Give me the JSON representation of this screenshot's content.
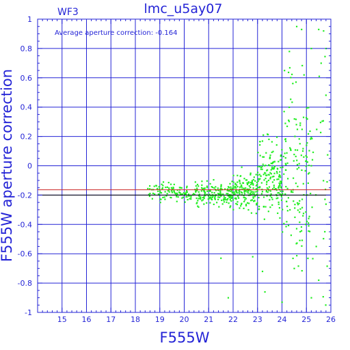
{
  "chart_data": {
    "type": "scatter",
    "title": "lmc_u5ay07",
    "subtitle": "WF3",
    "annotation": "Average aperture correction:  -0.164",
    "xlabel": "F555W",
    "ylabel": "F555W aperture correction",
    "xlim": [
      14,
      26
    ],
    "ylim": [
      -1,
      1
    ],
    "x_ticks": [
      "15",
      "16",
      "17",
      "18",
      "19",
      "20",
      "21",
      "22",
      "23",
      "24",
      "25",
      "26"
    ],
    "y_ticks": [
      "1",
      "0.8",
      "0.6",
      "0.4",
      "0.2",
      "0",
      "-0.2",
      "-0.4",
      "-0.6",
      "-0.8",
      "-1"
    ],
    "grid": true,
    "colors": {
      "axes": "#2323d6",
      "points": "#22ee22",
      "average_line": "#cc2222",
      "reference_line": "#000000"
    },
    "reference_lines": [
      {
        "y": -0.164,
        "color": "#cc2222"
      },
      {
        "y": -0.2,
        "color": "#000000"
      }
    ],
    "point_cloud": {
      "description_free": true,
      "bands": [
        {
          "x": [
            18.5,
            20.5
          ],
          "y_center": -0.18,
          "y_spread": 0.06,
          "count": 110
        },
        {
          "x": [
            20.5,
            22.0
          ],
          "y_center": -0.19,
          "y_spread": 0.08,
          "count": 160
        },
        {
          "x": [
            22.0,
            23.0
          ],
          "y_center": -0.17,
          "y_spread": 0.12,
          "count": 150
        },
        {
          "x": [
            23.0,
            24.0
          ],
          "y_center": -0.1,
          "y_spread": 0.25,
          "count": 170
        },
        {
          "x": [
            24.0,
            25.2
          ],
          "y_center": 0.0,
          "y_spread": 0.45,
          "count": 150
        },
        {
          "x": [
            25.2,
            25.9
          ],
          "y_center": 0.0,
          "y_spread": 0.6,
          "count": 25
        }
      ],
      "outliers": [
        [
          24.6,
          0.95
        ],
        [
          24.8,
          0.93
        ],
        [
          25.5,
          0.93
        ],
        [
          25.7,
          0.92
        ],
        [
          25.8,
          0.8
        ],
        [
          24.3,
          0.78
        ],
        [
          25.2,
          0.8
        ],
        [
          25.6,
          0.7
        ],
        [
          24.9,
          0.62
        ],
        [
          24.1,
          0.65
        ],
        [
          21.8,
          -0.9
        ],
        [
          21.5,
          -0.63
        ],
        [
          23.3,
          -0.86
        ],
        [
          24.0,
          -0.93
        ],
        [
          25.2,
          -0.9
        ],
        [
          25.5,
          -0.78
        ],
        [
          25.4,
          -0.55
        ],
        [
          23.2,
          -0.72
        ],
        [
          24.5,
          -0.7
        ],
        [
          22.8,
          -0.62
        ]
      ]
    }
  }
}
